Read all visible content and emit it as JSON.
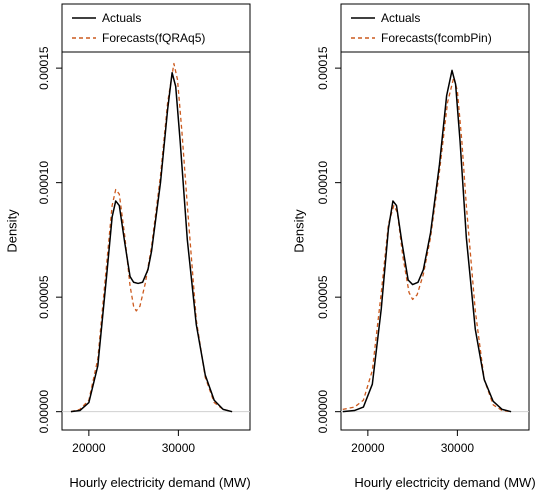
{
  "chart_data": [
    {
      "type": "line",
      "xlabel": "Hourly electricity demand  (MW)",
      "ylabel": "Density",
      "xlim": [
        17000,
        38000
      ],
      "ylim": [
        -8e-06,
        0.000178
      ],
      "x_ticks": [
        {
          "value": 20000,
          "label": "20000"
        },
        {
          "value": 30000,
          "label": "30000"
        }
      ],
      "y_ticks": [
        {
          "value": 0,
          "label": "0.00000"
        },
        {
          "value": 5e-05,
          "label": "0.00005"
        },
        {
          "value": 0.0001,
          "label": "0.00010"
        },
        {
          "value": 0.00015,
          "label": "0.00015"
        }
      ],
      "legend_position": "top",
      "series": [
        {
          "name": "Actuals",
          "color": "#000000",
          "dash": "solid",
          "points": [
            [
              18000,
              0
            ],
            [
              19000,
              5e-07
            ],
            [
              20000,
              4e-06
            ],
            [
              21000,
              2e-05
            ],
            [
              22000,
              6e-05
            ],
            [
              22600,
              8.5e-05
            ],
            [
              23000,
              9.2e-05
            ],
            [
              23400,
              9e-05
            ],
            [
              24000,
              7.4e-05
            ],
            [
              24600,
              5.9e-05
            ],
            [
              25000,
              5.65e-05
            ],
            [
              25500,
              5.6e-05
            ],
            [
              26000,
              5.65e-05
            ],
            [
              26600,
              6.2e-05
            ],
            [
              27000,
              7e-05
            ],
            [
              28000,
              0.0001
            ],
            [
              28800,
              0.000132
            ],
            [
              29300,
              0.000148
            ],
            [
              29700,
              0.000142
            ],
            [
              30200,
              0.000118
            ],
            [
              31000,
              7.5e-05
            ],
            [
              32000,
              3.8e-05
            ],
            [
              33000,
              1.6e-05
            ],
            [
              34000,
              5e-06
            ],
            [
              35000,
              1e-06
            ],
            [
              36000,
              0
            ]
          ]
        },
        {
          "name": "Forecasts(fQRAq5)",
          "color": "#cc5a1e",
          "dash": "dashed",
          "points": [
            [
              18000,
              0
            ],
            [
              19000,
              1e-06
            ],
            [
              20000,
              5e-06
            ],
            [
              21000,
              2.3e-05
            ],
            [
              22000,
              6.5e-05
            ],
            [
              22600,
              9e-05
            ],
            [
              23000,
              9.7e-05
            ],
            [
              23400,
              9.5e-05
            ],
            [
              24000,
              7.7e-05
            ],
            [
              24600,
              5.5e-05
            ],
            [
              25000,
              4.6e-05
            ],
            [
              25300,
              4.4e-05
            ],
            [
              25700,
              4.6e-05
            ],
            [
              26300,
              5.6e-05
            ],
            [
              27000,
              7.2e-05
            ],
            [
              28000,
              0.000103
            ],
            [
              28800,
              0.000135
            ],
            [
              29500,
              0.000152
            ],
            [
              29900,
              0.000145
            ],
            [
              30400,
              0.000122
            ],
            [
              31000,
              9e-05
            ],
            [
              32000,
              4e-05
            ],
            [
              33000,
              1.5e-05
            ],
            [
              34000,
              4e-06
            ],
            [
              35000,
              1e-06
            ],
            [
              36000,
              0
            ]
          ]
        }
      ]
    },
    {
      "type": "line",
      "xlabel": "Hourly electricity demand  (MW)",
      "ylabel": "Density",
      "xlim": [
        17000,
        38000
      ],
      "ylim": [
        -8e-06,
        0.000178
      ],
      "x_ticks": [
        {
          "value": 20000,
          "label": "20000"
        },
        {
          "value": 30000,
          "label": "30000"
        }
      ],
      "y_ticks": [
        {
          "value": 0,
          "label": "0.00000"
        },
        {
          "value": 5e-05,
          "label": "0.00005"
        },
        {
          "value": 0.0001,
          "label": "0.00010"
        },
        {
          "value": 0.00015,
          "label": "0.00015"
        }
      ],
      "legend_position": "top",
      "series": [
        {
          "name": "Actuals",
          "color": "#000000",
          "dash": "solid",
          "points": [
            [
              17200,
              0
            ],
            [
              18500,
              5e-07
            ],
            [
              19500,
              2e-06
            ],
            [
              20500,
              1.2e-05
            ],
            [
              21500,
              4.5e-05
            ],
            [
              22300,
              8e-05
            ],
            [
              22800,
              9.2e-05
            ],
            [
              23200,
              9e-05
            ],
            [
              23800,
              7.4e-05
            ],
            [
              24500,
              5.75e-05
            ],
            [
              25000,
              5.55e-05
            ],
            [
              25600,
              5.65e-05
            ],
            [
              26200,
              6.2e-05
            ],
            [
              27000,
              7.8e-05
            ],
            [
              28000,
              0.000108
            ],
            [
              28800,
              0.000138
            ],
            [
              29400,
              0.000149
            ],
            [
              29800,
              0.000143
            ],
            [
              30300,
              0.000118
            ],
            [
              31000,
              7.6e-05
            ],
            [
              32000,
              3.6e-05
            ],
            [
              33000,
              1.4e-05
            ],
            [
              34000,
              4.5e-06
            ],
            [
              35000,
              1e-06
            ],
            [
              36000,
              0
            ]
          ]
        },
        {
          "name": "Forecasts(fcombPin)",
          "color": "#cc5a1e",
          "dash": "dashed",
          "points": [
            [
              17200,
              1e-06
            ],
            [
              18500,
              2e-06
            ],
            [
              19500,
              5e-06
            ],
            [
              20500,
              1.8e-05
            ],
            [
              21500,
              5.2e-05
            ],
            [
              22300,
              8.2e-05
            ],
            [
              22900,
              9e-05
            ],
            [
              23300,
              8.7e-05
            ],
            [
              23900,
              6.8e-05
            ],
            [
              24600,
              5.2e-05
            ],
            [
              25000,
              4.9e-05
            ],
            [
              25500,
              5.1e-05
            ],
            [
              26200,
              6e-05
            ],
            [
              27000,
              7.6e-05
            ],
            [
              28000,
              0.000105
            ],
            [
              28900,
              0.000135
            ],
            [
              29600,
              0.000146
            ],
            [
              30000,
              0.00014
            ],
            [
              30500,
              0.000118
            ],
            [
              31000,
              9e-05
            ],
            [
              32000,
              4.4e-05
            ],
            [
              33000,
              1.4e-05
            ],
            [
              34000,
              3e-06
            ],
            [
              35000,
              5e-07
            ],
            [
              36000,
              0
            ]
          ]
        }
      ]
    }
  ]
}
